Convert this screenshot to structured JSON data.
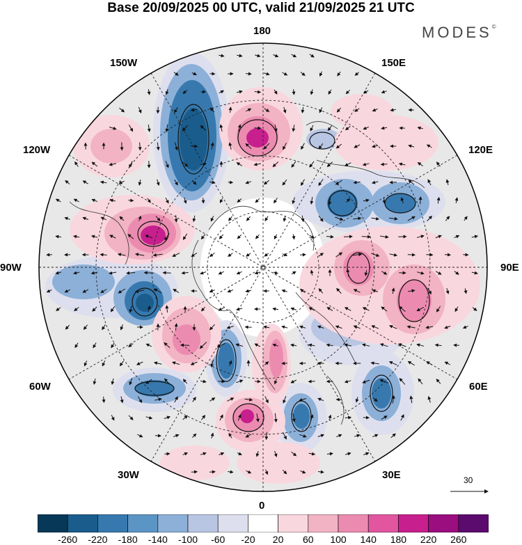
{
  "title": "Base 20/09/2025 00 UTC, valid 21/09/2025 21 UTC",
  "brand": "MODES",
  "brand_mark": "©",
  "longitude_labels": {
    "lon_180": "180",
    "lon_150W": "150W",
    "lon_150E": "150E",
    "lon_120W": "120W",
    "lon_120E": "120E",
    "lon_90W": "90W",
    "lon_90E": "90E",
    "lon_60W": "60W",
    "lon_60E": "60E",
    "lon_30W": "30W",
    "lon_30E": "30E",
    "lon_0": "0"
  },
  "vector_scale_label": "30",
  "colorbar": {
    "labels": [
      "-260",
      "-220",
      "-180",
      "-140",
      "-100",
      "-60",
      "-20",
      "20",
      "60",
      "100",
      "140",
      "180",
      "220",
      "260"
    ],
    "colors": [
      "#083858",
      "#1a5c8c",
      "#3779ae",
      "#5b95c6",
      "#8cb0d8",
      "#b8c6e3",
      "#dedfee",
      "#ffffff",
      "#f9d7df",
      "#f2b3c4",
      "#ec8bb0",
      "#e1569f",
      "#c71f8d",
      "#9a0e7f",
      "#5b0a6e"
    ]
  },
  "anomaly_colors": {
    "neg_strong": "#1a5c8c",
    "neg_mid": "#3779ae",
    "neg_weak": "#8cb0d8",
    "neg_faint": "#dedfee",
    "pos_faint": "#f9d7df",
    "pos_weak": "#f2b3c4",
    "pos_mid": "#ec8bb0",
    "pos_strong": "#c71f8d",
    "background": "#e8e8e8"
  }
}
